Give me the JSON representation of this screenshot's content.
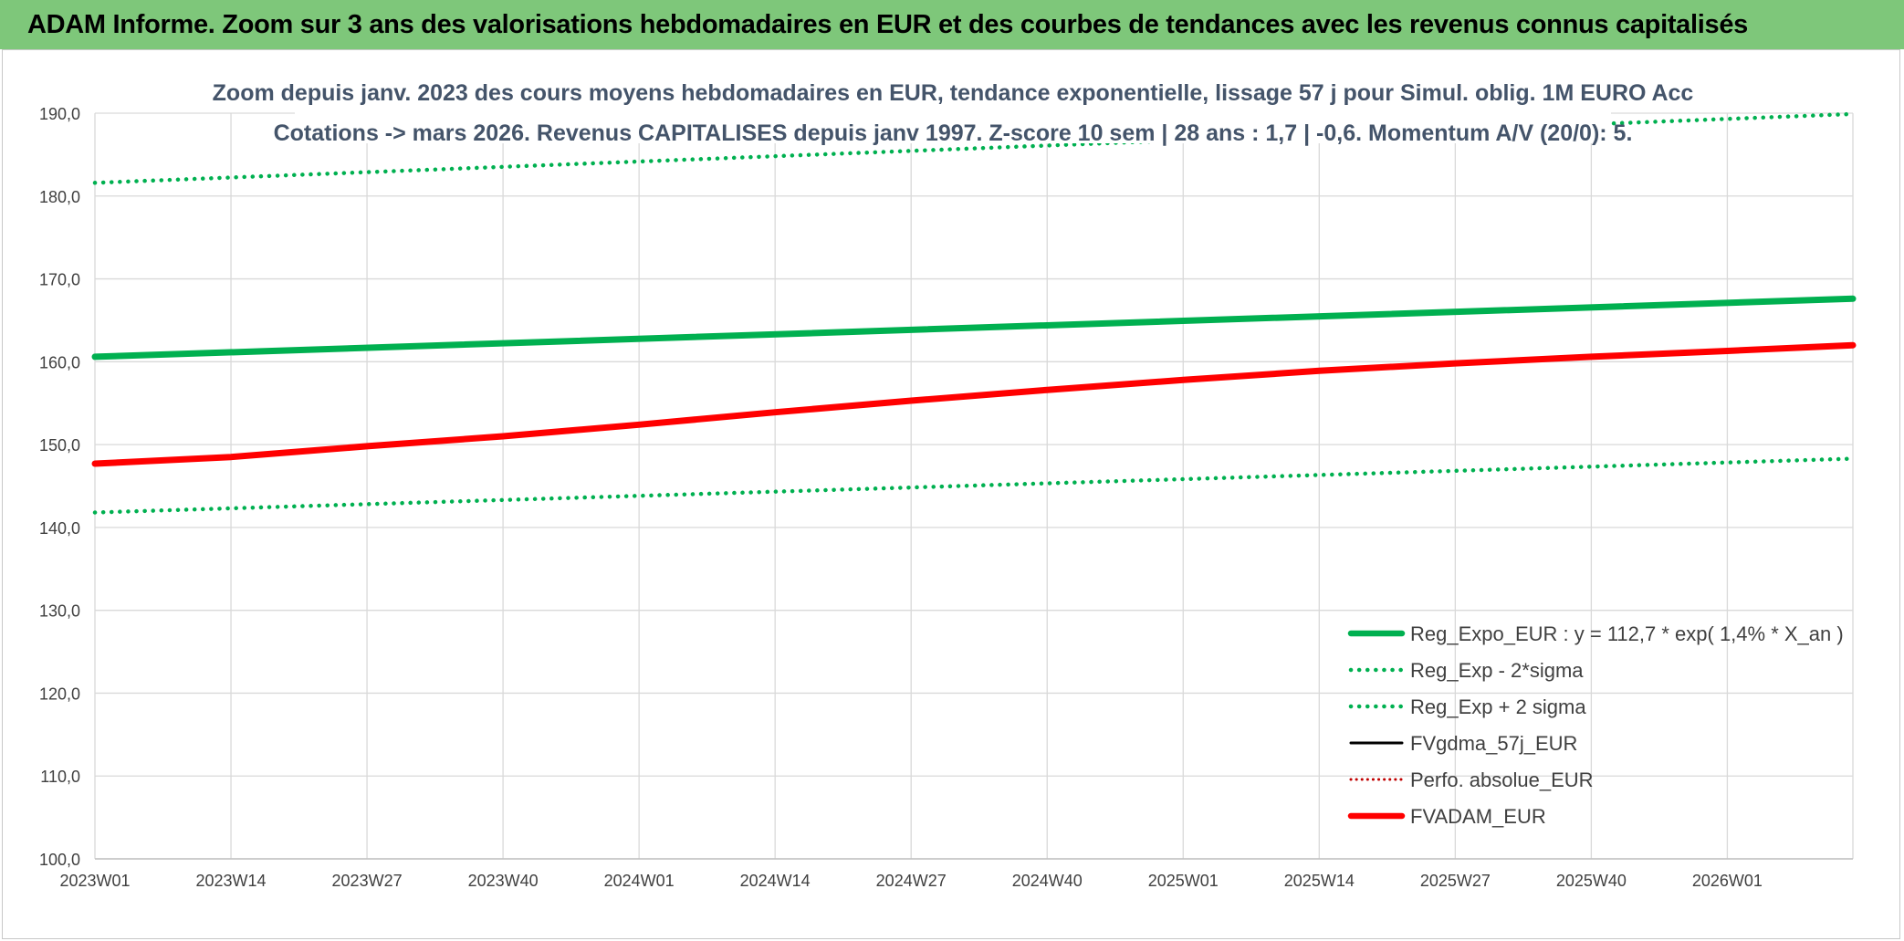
{
  "banner": {
    "title": "ADAM Informe. Zoom sur 3 ans des valorisations hebdomadaires en EUR et des courbes de tendances avec les revenus connus capitalisés"
  },
  "colors": {
    "banner_bg": "#7ec77a",
    "reg_expo": "#00b050",
    "fvadam": "#ff0000",
    "fvgdma": "#000000",
    "grid": "#d9d9d9"
  },
  "chart_data": {
    "type": "line",
    "title_lines": [
      "Zoom depuis janv. 2023 des cours moyens hebdomadaires en EUR, tendance exponentielle, lissage 57 j pour Simul. oblig. 1M EURO Acc",
      "Cotations -> mars 2026. Revenus CAPITALISES depuis janv 1997. Z-score 10 sem | 28 ans : 1,7 | -0,6. Momentum A/V (20/0): 5."
    ],
    "xlabel": "",
    "ylabel": "",
    "x_tick_labels": [
      "2023W01",
      "2023W14",
      "2023W27",
      "2023W40",
      "2024W01",
      "2024W14",
      "2024W27",
      "2024W40",
      "2025W01",
      "2025W14",
      "2025W27",
      "2025W40",
      "2026W01"
    ],
    "x_range_weeks": [
      0,
      168
    ],
    "y_tick_labels": [
      "190,0",
      "180,0",
      "170,0",
      "160,0",
      "150,0",
      "140,0",
      "130,0",
      "120,0",
      "110,0",
      "100,0"
    ],
    "ylim": [
      100,
      190
    ],
    "grid": true,
    "legend_position": "bottom-right",
    "series": [
      {
        "name": "Reg_Expo_EUR : y = 112,7 * exp( 1,4% *  X_an )",
        "style": "solid-thick",
        "color": "#00b050",
        "x": [
          0,
          168
        ],
        "y": [
          160.6,
          167.6
        ]
      },
      {
        "name": "Reg_Exp - 2*sigma",
        "style": "dotted",
        "color": "#00b050",
        "x": [
          0,
          168
        ],
        "y": [
          141.8,
          148.3
        ]
      },
      {
        "name": "Reg_Exp + 2 sigma",
        "style": "dotted",
        "color": "#00b050",
        "x": [
          0,
          168
        ],
        "y": [
          181.6,
          189.9
        ]
      },
      {
        "name": "FVgdma_57j_EUR",
        "style": "solid-thin",
        "color": "#000000",
        "x": [
          0,
          13,
          26,
          39,
          52,
          65,
          78,
          91,
          104,
          117,
          130,
          143,
          156,
          168
        ],
        "y": [
          147.6,
          148.5,
          149.7,
          151.0,
          152.4,
          153.9,
          155.3,
          156.6,
          157.8,
          158.9,
          159.8,
          160.6,
          161.3,
          161.9
        ]
      },
      {
        "name": "Perfo. absolue_EUR",
        "style": "dotted-thin",
        "color": "#c00000",
        "x": [],
        "y": []
      },
      {
        "name": "FVADAM_EUR",
        "style": "solid-thick",
        "color": "#ff0000",
        "x": [
          0,
          13,
          26,
          39,
          52,
          65,
          78,
          91,
          104,
          117,
          130,
          143,
          156,
          168
        ],
        "y": [
          147.7,
          148.5,
          149.8,
          151.0,
          152.4,
          153.9,
          155.3,
          156.6,
          157.8,
          158.9,
          159.8,
          160.6,
          161.3,
          162.0
        ]
      }
    ]
  }
}
